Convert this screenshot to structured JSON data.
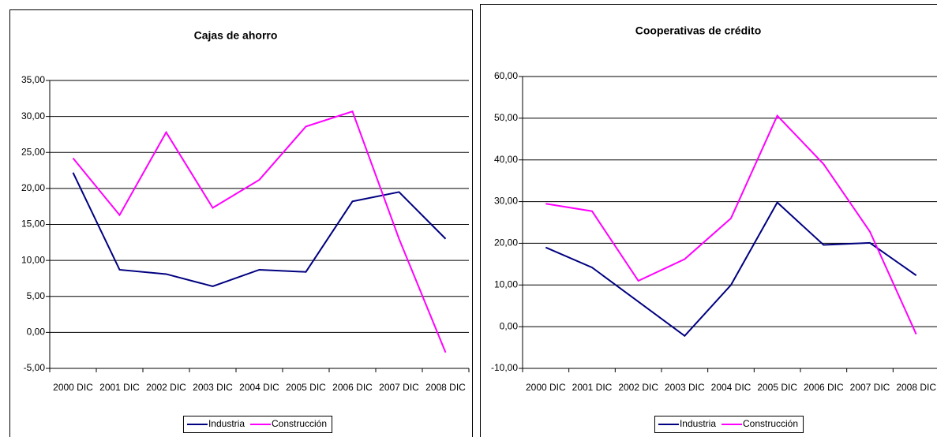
{
  "chart_data": [
    {
      "type": "line",
      "title": "Cajas de ahorro",
      "categories": [
        "2000 DIC",
        "2001 DIC",
        "2002 DIC",
        "2003 DIC",
        "2004 DIC",
        "2005 DIC",
        "2006 DIC",
        "2007 DIC",
        "2008 DIC"
      ],
      "series": [
        {
          "name": "Industria",
          "color": "#000080",
          "values": [
            22.2,
            8.7,
            8.1,
            6.4,
            8.7,
            8.4,
            18.2,
            19.5,
            13.0
          ]
        },
        {
          "name": "Construcción",
          "color": "#ff00ff",
          "values": [
            24.2,
            16.3,
            27.8,
            17.3,
            21.2,
            28.6,
            30.7,
            13.0,
            -2.8
          ]
        }
      ],
      "ylim": [
        -5,
        35
      ],
      "yticks": [
        {
          "value": -5,
          "label": "-5,00"
        },
        {
          "value": 0,
          "label": "0,00"
        },
        {
          "value": 5,
          "label": "5,00"
        },
        {
          "value": 10,
          "label": "10,00"
        },
        {
          "value": 15,
          "label": "15,00"
        },
        {
          "value": 20,
          "label": "20,00"
        },
        {
          "value": 25,
          "label": "25,00"
        },
        {
          "value": 30,
          "label": "30,00"
        },
        {
          "value": 35,
          "label": "35,00"
        }
      ],
      "grid": true,
      "legend": "bottom"
    },
    {
      "type": "line",
      "title": "Cooperativas de crédito",
      "categories": [
        "2000 DIC",
        "2001 DIC",
        "2002 DIC",
        "2003 DIC",
        "2004 DIC",
        "2005 DIC",
        "2006 DIC",
        "2007 DIC",
        "2008 DIC"
      ],
      "series": [
        {
          "name": "Industria",
          "color": "#000080",
          "values": [
            19.0,
            14.2,
            6.0,
            -2.2,
            10.0,
            29.8,
            19.6,
            20.1,
            12.3
          ]
        },
        {
          "name": "Construcción",
          "color": "#ff00ff",
          "values": [
            29.5,
            27.7,
            11.0,
            16.2,
            26.0,
            50.6,
            39.0,
            22.8,
            -1.8
          ]
        }
      ],
      "ylim": [
        -10,
        60
      ],
      "yticks": [
        {
          "value": -10,
          "label": "-10,00"
        },
        {
          "value": 0,
          "label": "0,00"
        },
        {
          "value": 10,
          "label": "10,00"
        },
        {
          "value": 20,
          "label": "20,00"
        },
        {
          "value": 30,
          "label": "30,00"
        },
        {
          "value": 40,
          "label": "40,00"
        },
        {
          "value": 50,
          "label": "50,00"
        },
        {
          "value": 60,
          "label": "60,00"
        }
      ],
      "grid": true,
      "legend": "bottom"
    }
  ]
}
